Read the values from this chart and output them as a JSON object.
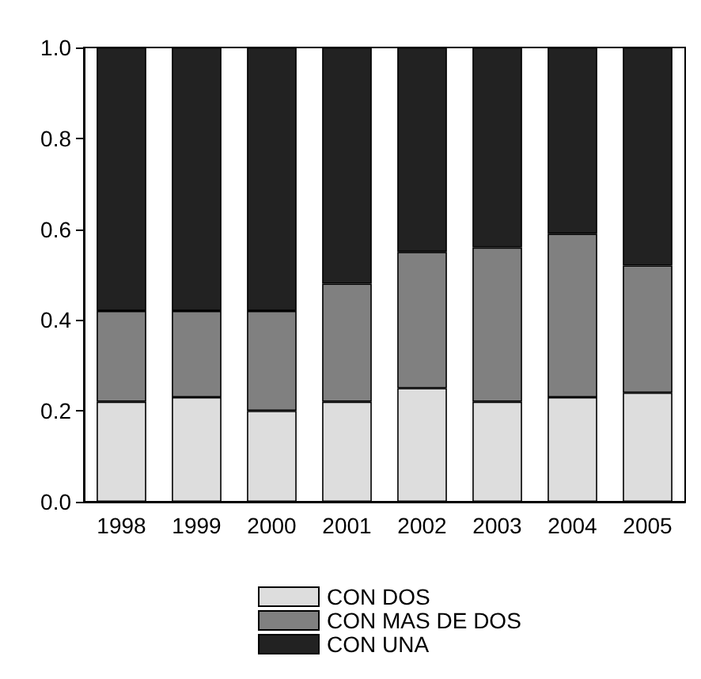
{
  "chart_data": {
    "type": "bar",
    "stacked": true,
    "categories": [
      "1998",
      "1999",
      "2000",
      "2001",
      "2002",
      "2003",
      "2004",
      "2005"
    ],
    "series": [
      {
        "name": "CON DOS",
        "color": "#dddddd",
        "values": [
          0.22,
          0.23,
          0.2,
          0.22,
          0.25,
          0.22,
          0.23,
          0.24
        ]
      },
      {
        "name": "CON MAS DE DOS",
        "color": "#808080",
        "values": [
          0.2,
          0.19,
          0.22,
          0.26,
          0.3,
          0.34,
          0.36,
          0.28
        ]
      },
      {
        "name": "CON UNA",
        "color": "#222222",
        "values": [
          0.58,
          0.58,
          0.58,
          0.52,
          0.45,
          0.44,
          0.41,
          0.48
        ]
      }
    ],
    "ylim": [
      0,
      1
    ],
    "yticks": [
      {
        "value": 0,
        "label": "0.0"
      },
      {
        "value": 0.2,
        "label": "0.2"
      },
      {
        "value": 0.4,
        "label": "0.4"
      },
      {
        "value": 0.6,
        "label": "0.6"
      },
      {
        "value": 0.8,
        "label": "0.8"
      },
      {
        "value": 1,
        "label": "1.0"
      }
    ],
    "grid": false,
    "legend": "bottom"
  }
}
